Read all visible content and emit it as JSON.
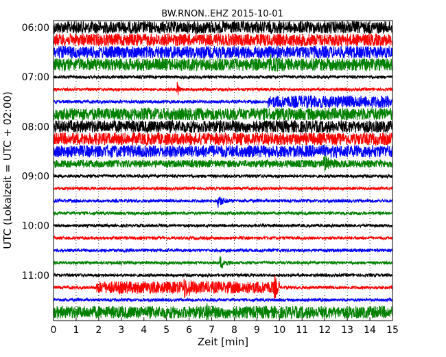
{
  "chart_data": {
    "type": "line",
    "title": "BW.RNON..EHZ 2015-10-01",
    "xlabel": "Zeit  [min]",
    "ylabel": "UTC (Lokalzeit = UTC + 02:00)",
    "xlim": [
      0,
      15
    ],
    "x_ticks": [
      0,
      1,
      2,
      3,
      4,
      5,
      6,
      7,
      8,
      9,
      10,
      11,
      12,
      13,
      14,
      15
    ],
    "y_tick_labels": [
      "06:00",
      "07:00",
      "08:00",
      "09:00",
      "10:00",
      "11:00"
    ],
    "grid": "vertical dotted",
    "trace_start": "06:00",
    "trace_interval_min": 15,
    "color_cycle": [
      "#000000",
      "#ff0000",
      "#0000ff",
      "#008000"
    ],
    "traces": [
      {
        "start": "06:00",
        "color": "#000000",
        "level": "high",
        "events": []
      },
      {
        "start": "06:15",
        "color": "#ff0000",
        "level": "high",
        "events": []
      },
      {
        "start": "06:30",
        "color": "#0000ff",
        "level": "high",
        "events": []
      },
      {
        "start": "06:45",
        "color": "#008000",
        "level": "high",
        "events": [
          {
            "t_min": 9.6,
            "kind": "burst"
          }
        ]
      },
      {
        "start": "07:00",
        "color": "#000000",
        "level": "low",
        "events": []
      },
      {
        "start": "07:15",
        "color": "#ff0000",
        "level": "low",
        "events": [
          {
            "t_min": 5.5,
            "kind": "spike"
          }
        ]
      },
      {
        "start": "07:30",
        "color": "#0000ff",
        "level": "low",
        "events": [
          {
            "t_min": 9.5,
            "kind": "onset_high"
          }
        ]
      },
      {
        "start": "07:45",
        "color": "#008000",
        "level": "high",
        "events": []
      },
      {
        "start": "08:00",
        "color": "#000000",
        "level": "high",
        "events": []
      },
      {
        "start": "08:15",
        "color": "#ff0000",
        "level": "high",
        "events": []
      },
      {
        "start": "08:30",
        "color": "#0000ff",
        "level": "high",
        "events": []
      },
      {
        "start": "08:45",
        "color": "#008000",
        "level": "medium",
        "events": [
          {
            "t_min": 12.0,
            "kind": "burst"
          }
        ]
      },
      {
        "start": "09:00",
        "color": "#000000",
        "level": "low",
        "events": []
      },
      {
        "start": "09:15",
        "color": "#ff0000",
        "level": "low",
        "events": []
      },
      {
        "start": "09:30",
        "color": "#0000ff",
        "level": "low",
        "events": [
          {
            "t_min": 7.3,
            "kind": "burst"
          }
        ]
      },
      {
        "start": "09:45",
        "color": "#008000",
        "level": "low",
        "events": []
      },
      {
        "start": "10:00",
        "color": "#000000",
        "level": "low",
        "events": []
      },
      {
        "start": "10:15",
        "color": "#ff0000",
        "level": "low",
        "events": []
      },
      {
        "start": "10:30",
        "color": "#0000ff",
        "level": "low",
        "events": []
      },
      {
        "start": "10:45",
        "color": "#008000",
        "level": "low",
        "events": [
          {
            "t_min": 7.4,
            "kind": "burst"
          }
        ]
      },
      {
        "start": "11:00",
        "color": "#000000",
        "level": "low",
        "events": []
      },
      {
        "start": "11:15",
        "color": "#ff0000",
        "level": "low",
        "events": [
          {
            "t_min": 1.9,
            "kind": "onset_high"
          },
          {
            "t_min": 5.8,
            "kind": "burst"
          },
          {
            "t_min": 9.8,
            "kind": "spike"
          },
          {
            "t_min": 10.0,
            "kind": "end_high"
          }
        ]
      },
      {
        "start": "11:30",
        "color": "#0000ff",
        "level": "low",
        "events": []
      },
      {
        "start": "11:45",
        "color": "#008000",
        "level": "high",
        "events": [
          {
            "t_min": 6.8,
            "kind": "spike"
          }
        ]
      }
    ]
  }
}
